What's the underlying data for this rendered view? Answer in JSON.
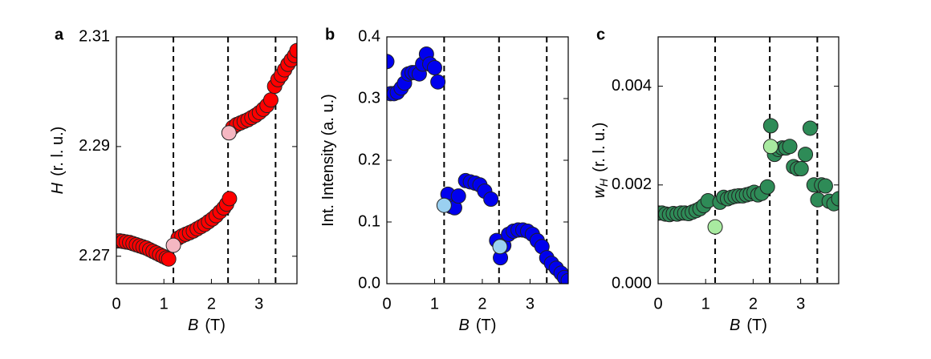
{
  "chart_data": [
    {
      "type": "scatter",
      "panel": "a",
      "ylabel": {
        "symbol": "H",
        "unit": "(r. l. u.)"
      },
      "xlabel": {
        "symbol": "B",
        "unit": "(T)"
      },
      "xlim": [
        0,
        3.8
      ],
      "xticks": [
        0,
        1,
        2,
        3
      ],
      "ylim": [
        2.265,
        2.31
      ],
      "yticks": [
        2.27,
        2.29,
        2.31
      ],
      "vlines": [
        1.2,
        2.35,
        3.35
      ],
      "series": [
        {
          "color": "#ff0000",
          "x": [
            0,
            0.07,
            0.14,
            0.21,
            0.28,
            0.35,
            0.42,
            0.49,
            0.56,
            0.63,
            0.7,
            0.77,
            0.84,
            0.91,
            0.98,
            1.05,
            1.1,
            1.3,
            1.38,
            1.46,
            1.54,
            1.62,
            1.7,
            1.78,
            1.86,
            1.94,
            2.02,
            2.1,
            2.18,
            2.26,
            2.32,
            2.38,
            2.45,
            2.53,
            2.61,
            2.69,
            2.77,
            2.85,
            2.93,
            3.01,
            3.09,
            3.17,
            3.25,
            3.33,
            3.4,
            3.47,
            3.54,
            3.61,
            3.68,
            3.75,
            3.8
          ],
          "values": [
            2.2728,
            2.2728,
            2.2727,
            2.2726,
            2.2725,
            2.2723,
            2.2721,
            2.2719,
            2.2717,
            2.2715,
            2.2712,
            2.2709,
            2.2706,
            2.2703,
            2.27,
            2.2697,
            2.2695,
            2.2733,
            2.2737,
            2.274,
            2.2743,
            2.2746,
            2.275,
            2.2754,
            2.2758,
            2.2763,
            2.2768,
            2.2774,
            2.2781,
            2.2788,
            2.2795,
            2.2805,
            2.2935,
            2.294,
            2.2943,
            2.2946,
            2.2949,
            2.2953,
            2.2957,
            2.2962,
            2.2968,
            2.2975,
            2.2985,
            2.301,
            2.3022,
            2.303,
            2.304,
            2.305,
            2.3058,
            2.3066,
            2.3075
          ]
        },
        {
          "color": "#f5b7c2",
          "x": [
            1.2,
            2.37
          ],
          "values": [
            2.272,
            2.2925
          ]
        }
      ]
    },
    {
      "type": "scatter",
      "panel": "b",
      "ylabel": {
        "text": "Int. Intensity (a. u.)"
      },
      "xlabel": {
        "symbol": "B",
        "unit": "(T)"
      },
      "xlim": [
        0,
        3.8
      ],
      "xticks": [
        0,
        1,
        2,
        3
      ],
      "ylim": [
        0,
        0.4
      ],
      "yticks": [
        {
          "value": 0,
          "label": "0.0"
        },
        0.1,
        0.2,
        0.3,
        0.4
      ],
      "vlines": [
        1.2,
        2.35,
        3.35
      ],
      "series": [
        {
          "color": "#0000ee",
          "x": [
            0,
            0.08,
            0.15,
            0.22,
            0.3,
            0.37,
            0.45,
            0.53,
            0.6,
            0.68,
            0.75,
            0.83,
            0.9,
            1.0,
            1.07,
            1.28,
            1.35,
            1.42,
            1.5,
            1.65,
            1.75,
            1.85,
            1.95,
            2.05,
            2.18,
            2.3,
            2.38,
            2.45,
            2.55,
            2.65,
            2.75,
            2.85,
            2.95,
            3.05,
            3.15,
            3.25,
            3.35,
            3.45,
            3.55,
            3.65,
            3.72,
            3.8
          ],
          "values": [
            0.36,
            0.308,
            0.308,
            0.31,
            0.317,
            0.325,
            0.34,
            0.342,
            0.342,
            0.34,
            0.356,
            0.372,
            0.356,
            0.35,
            0.327,
            0.145,
            0.125,
            0.123,
            0.142,
            0.167,
            0.165,
            0.163,
            0.16,
            0.15,
            0.137,
            0.07,
            0.042,
            0.062,
            0.08,
            0.085,
            0.087,
            0.087,
            0.085,
            0.08,
            0.07,
            0.06,
            0.042,
            0.033,
            0.025,
            0.017,
            0.01,
            0.005
          ]
        },
        {
          "color": "#9ad0f0",
          "x": [
            1.2,
            2.37
          ],
          "values": [
            0.127,
            0.06
          ]
        }
      ]
    },
    {
      "type": "scatter",
      "panel": "c",
      "ylabel": {
        "symbol": "w",
        "subscript": "H",
        "unit": "(r. l. u.)"
      },
      "xlabel": {
        "symbol": "B",
        "unit": "(T)"
      },
      "xlim": [
        0,
        3.8
      ],
      "xticks": [
        0,
        1,
        2,
        3
      ],
      "ylim": [
        0,
        0.005
      ],
      "yticks": [
        {
          "value": 0,
          "label": "0.000"
        },
        {
          "value": 0.002,
          "label": "0.002"
        },
        {
          "value": 0.004,
          "label": "0.004"
        }
      ],
      "vlines": [
        1.2,
        2.35,
        3.35
      ],
      "series": [
        {
          "color": "#2e8b57",
          "x": [
            0,
            0.08,
            0.16,
            0.24,
            0.32,
            0.4,
            0.48,
            0.56,
            0.64,
            0.72,
            0.8,
            0.88,
            0.96,
            1.05,
            1.3,
            1.38,
            1.46,
            1.54,
            1.62,
            1.7,
            1.78,
            1.86,
            1.94,
            2.02,
            2.1,
            2.18,
            2.3,
            2.37,
            2.45,
            2.53,
            2.61,
            2.69,
            2.77,
            2.85,
            2.93,
            3.01,
            3.1,
            3.2,
            3.28,
            3.36,
            3.44,
            3.52,
            3.6,
            3.7,
            3.8
          ],
          "values": [
            0.00143,
            0.00143,
            0.00141,
            0.0014,
            0.00142,
            0.00141,
            0.00143,
            0.00143,
            0.00142,
            0.00145,
            0.00148,
            0.00152,
            0.00158,
            0.00168,
            0.00165,
            0.00175,
            0.00172,
            0.00175,
            0.00177,
            0.00178,
            0.00178,
            0.0018,
            0.00182,
            0.00185,
            0.0018,
            0.00183,
            0.00196,
            0.0032,
            0.00262,
            0.00272,
            0.00275,
            0.00275,
            0.00278,
            0.00237,
            0.00233,
            0.00233,
            0.00262,
            0.00315,
            0.002,
            0.0017,
            0.002,
            0.00198,
            0.00167,
            0.00162,
            0.00172
          ]
        },
        {
          "color": "#a8eaa0",
          "x": [
            1.2,
            2.37
          ],
          "values": [
            0.00115,
            0.00278
          ]
        }
      ]
    }
  ]
}
